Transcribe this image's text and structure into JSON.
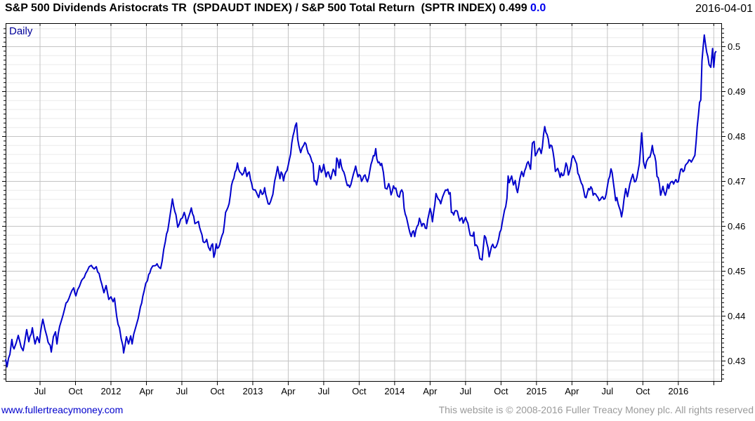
{
  "header": {
    "title": "S&P 500 Dividends Aristocrats TR  (SPDAUDT INDEX) / S&P 500 Total Return  (SPTR INDEX) 0.499 ",
    "change": "0.0",
    "date": "2016-04-01"
  },
  "chart": {
    "mode_label": "Daily"
  },
  "footer": {
    "link": "www.fullertreacymoney.com",
    "copyright": "This website is © 2008-2016 Fuller Treacy Money plc. All rights reserved"
  },
  "colors": {
    "line": "#0000cc",
    "grid_major": "#c4c4c4",
    "grid_minor": "#eaeaea",
    "border": "#000000",
    "tick": "#000000",
    "daily_label": "#000099",
    "change_text": "#0000ee",
    "link": "#0000cc",
    "copyright": "#9a9a9a"
  },
  "chart_data": {
    "type": "line",
    "title": "S&P 500 Dividends Aristocrats TR (SPDAUDT INDEX) / S&P 500 Total Return (SPTR INDEX)",
    "series_name": "SPDAUDT / SPTR ratio",
    "timeframe": "Daily",
    "last_value": 0.499,
    "change": 0.0,
    "legend": "none",
    "grid": "on",
    "x_axis": {
      "unit": "months_since_2011-04-01",
      "domain": [
        0.09,
        60.72
      ],
      "gridline_start": 3,
      "gridline_step": 3,
      "gridline_end": 60,
      "tick_labels": [
        {
          "label": "Jul",
          "t": 3
        },
        {
          "label": "Oct",
          "t": 6
        },
        {
          "label": "2012",
          "t": 9
        },
        {
          "label": "Apr",
          "t": 12
        },
        {
          "label": "Jul",
          "t": 15
        },
        {
          "label": "Oct",
          "t": 18
        },
        {
          "label": "2013",
          "t": 21
        },
        {
          "label": "Apr",
          "t": 24
        },
        {
          "label": "Jul",
          "t": 27
        },
        {
          "label": "Oct",
          "t": 30
        },
        {
          "label": "2014",
          "t": 33
        },
        {
          "label": "Apr",
          "t": 36
        },
        {
          "label": "Jul",
          "t": 39
        },
        {
          "label": "Oct",
          "t": 42
        },
        {
          "label": "2015",
          "t": 45
        },
        {
          "label": "Apr",
          "t": 48
        },
        {
          "label": "Jul",
          "t": 51
        },
        {
          "label": "Oct",
          "t": 54
        },
        {
          "label": "2016",
          "t": 57
        }
      ]
    },
    "y_axis": {
      "side": "right",
      "domain": [
        0.4254,
        0.5052
      ],
      "major_start": 0.43,
      "major_step": 0.01,
      "major_end": 0.5,
      "minor_step": 0.002,
      "tick_step": 0.001,
      "tick_labels": [
        {
          "label": "0.5",
          "v": 0.5
        },
        {
          "label": "0.49",
          "v": 0.49
        },
        {
          "label": "0.48",
          "v": 0.48
        },
        {
          "label": "0.47",
          "v": 0.47
        },
        {
          "label": "0.46",
          "v": 0.46
        },
        {
          "label": "0.45",
          "v": 0.45
        },
        {
          "label": "0.44",
          "v": 0.44
        },
        {
          "label": "0.43",
          "v": 0.43
        }
      ]
    },
    "points": [
      [
        0.09,
        0.4304
      ],
      [
        0.21,
        0.4287
      ],
      [
        0.45,
        0.4315
      ],
      [
        0.62,
        0.4348
      ],
      [
        0.8,
        0.4327
      ],
      [
        0.98,
        0.434
      ],
      [
        1.16,
        0.4357
      ],
      [
        1.4,
        0.4331
      ],
      [
        1.57,
        0.4323
      ],
      [
        1.87,
        0.437
      ],
      [
        2.05,
        0.4343
      ],
      [
        2.35,
        0.4374
      ],
      [
        2.58,
        0.4338
      ],
      [
        2.76,
        0.4354
      ],
      [
        2.94,
        0.4341
      ],
      [
        3.24,
        0.4393
      ],
      [
        3.42,
        0.437
      ],
      [
        3.59,
        0.4354
      ],
      [
        3.77,
        0.4338
      ],
      [
        3.95,
        0.432
      ],
      [
        4.13,
        0.4354
      ],
      [
        4.31,
        0.4365
      ],
      [
        4.43,
        0.4338
      ],
      [
        4.66,
        0.4377
      ],
      [
        4.84,
        0.4393
      ],
      [
        5.08,
        0.4416
      ],
      [
        5.32,
        0.4432
      ],
      [
        5.56,
        0.4448
      ],
      [
        5.85,
        0.4463
      ],
      [
        6.03,
        0.4445
      ],
      [
        6.33,
        0.4466
      ],
      [
        6.51,
        0.4479
      ],
      [
        6.74,
        0.4486
      ],
      [
        6.98,
        0.45
      ],
      [
        7.16,
        0.451
      ],
      [
        7.34,
        0.4513
      ],
      [
        7.58,
        0.4505
      ],
      [
        7.76,
        0.451
      ],
      [
        8.0,
        0.4495
      ],
      [
        8.23,
        0.4471
      ],
      [
        8.41,
        0.4452
      ],
      [
        8.59,
        0.4468
      ],
      [
        8.82,
        0.4437
      ],
      [
        9.0,
        0.4443
      ],
      [
        9.18,
        0.4432
      ],
      [
        9.3,
        0.444
      ],
      [
        9.48,
        0.4401
      ],
      [
        9.72,
        0.4374
      ],
      [
        10.01,
        0.4334
      ],
      [
        10.07,
        0.4318
      ],
      [
        10.31,
        0.4354
      ],
      [
        10.49,
        0.4338
      ],
      [
        10.67,
        0.4356
      ],
      [
        10.79,
        0.4338
      ],
      [
        11.2,
        0.4385
      ],
      [
        11.5,
        0.4421
      ],
      [
        11.8,
        0.4455
      ],
      [
        12.09,
        0.4479
      ],
      [
        12.39,
        0.4505
      ],
      [
        12.69,
        0.4512
      ],
      [
        13.0,
        0.4511
      ],
      [
        13.2,
        0.4506
      ],
      [
        13.6,
        0.4566
      ],
      [
        13.9,
        0.4606
      ],
      [
        14.2,
        0.4661
      ],
      [
        14.5,
        0.4626
      ],
      [
        14.65,
        0.4598
      ],
      [
        14.9,
        0.4616
      ],
      [
        15.2,
        0.4631
      ],
      [
        15.4,
        0.4606
      ],
      [
        15.7,
        0.4631
      ],
      [
        15.8,
        0.4641
      ],
      [
        16.1,
        0.4606
      ],
      [
        16.4,
        0.4611
      ],
      [
        16.7,
        0.4581
      ],
      [
        16.8,
        0.4566
      ],
      [
        17.1,
        0.4571
      ],
      [
        17.4,
        0.4546
      ],
      [
        17.6,
        0.4561
      ],
      [
        17.7,
        0.4531
      ],
      [
        17.9,
        0.4561
      ],
      [
        18.0,
        0.4551
      ],
      [
        18.3,
        0.4571
      ],
      [
        18.5,
        0.4586
      ],
      [
        18.7,
        0.4631
      ],
      [
        19.0,
        0.4651
      ],
      [
        19.2,
        0.4691
      ],
      [
        19.5,
        0.4721
      ],
      [
        19.7,
        0.4741
      ],
      [
        19.9,
        0.4721
      ],
      [
        20.1,
        0.4714
      ],
      [
        20.35,
        0.4731
      ],
      [
        20.5,
        0.4711
      ],
      [
        20.7,
        0.4721
      ],
      [
        20.9,
        0.4696
      ],
      [
        21.1,
        0.4681
      ],
      [
        21.3,
        0.4676
      ],
      [
        21.5,
        0.4664
      ],
      [
        21.65,
        0.4681
      ],
      [
        21.8,
        0.4671
      ],
      [
        22.0,
        0.4686
      ],
      [
        22.2,
        0.4661
      ],
      [
        22.4,
        0.4649
      ],
      [
        22.7,
        0.4671
      ],
      [
        22.85,
        0.4701
      ],
      [
        23.1,
        0.4733
      ],
      [
        23.3,
        0.4706
      ],
      [
        23.4,
        0.4721
      ],
      [
        23.6,
        0.4701
      ],
      [
        23.8,
        0.4721
      ],
      [
        24.0,
        0.4736
      ],
      [
        24.2,
        0.4761
      ],
      [
        24.3,
        0.4786
      ],
      [
        24.5,
        0.4811
      ],
      [
        24.7,
        0.483
      ],
      [
        24.8,
        0.4794
      ],
      [
        24.9,
        0.4779
      ],
      [
        25.05,
        0.4764
      ],
      [
        25.3,
        0.478
      ],
      [
        25.5,
        0.4783
      ],
      [
        25.8,
        0.476
      ],
      [
        26.1,
        0.474
      ],
      [
        26.2,
        0.47
      ],
      [
        26.4,
        0.4692
      ],
      [
        26.65,
        0.4735
      ],
      [
        26.8,
        0.472
      ],
      [
        27.0,
        0.4738
      ],
      [
        27.2,
        0.471
      ],
      [
        27.4,
        0.4721
      ],
      [
        27.6,
        0.4705
      ],
      [
        27.8,
        0.4727
      ],
      [
        28.0,
        0.4713
      ],
      [
        28.1,
        0.4752
      ],
      [
        28.3,
        0.473
      ],
      [
        28.4,
        0.4749
      ],
      [
        28.6,
        0.4725
      ],
      [
        28.7,
        0.4721
      ],
      [
        28.9,
        0.47
      ],
      [
        29.1,
        0.4692
      ],
      [
        29.3,
        0.4693
      ],
      [
        29.5,
        0.4715
      ],
      [
        29.7,
        0.4734
      ],
      [
        29.9,
        0.471
      ],
      [
        30.0,
        0.4715
      ],
      [
        30.2,
        0.47
      ],
      [
        30.4,
        0.4712
      ],
      [
        30.6,
        0.4705
      ],
      [
        30.7,
        0.4699
      ],
      [
        30.9,
        0.4723
      ],
      [
        31.1,
        0.4746
      ],
      [
        31.3,
        0.4757
      ],
      [
        31.4,
        0.4773
      ],
      [
        31.5,
        0.475
      ],
      [
        31.7,
        0.4743
      ],
      [
        31.9,
        0.474
      ],
      [
        32.05,
        0.472
      ],
      [
        32.2,
        0.4685
      ],
      [
        32.35,
        0.4683
      ],
      [
        32.5,
        0.4695
      ],
      [
        32.7,
        0.467
      ],
      [
        32.9,
        0.469
      ],
      [
        33.1,
        0.4685
      ],
      [
        33.25,
        0.4668
      ],
      [
        33.4,
        0.4665
      ],
      [
        33.5,
        0.4677
      ],
      [
        33.7,
        0.4675
      ],
      [
        33.8,
        0.464
      ],
      [
        34.0,
        0.462
      ],
      [
        34.1,
        0.4608
      ],
      [
        34.3,
        0.4585
      ],
      [
        34.4,
        0.4577
      ],
      [
        34.6,
        0.459
      ],
      [
        34.7,
        0.4577
      ],
      [
        34.9,
        0.46
      ],
      [
        35.1,
        0.4618
      ],
      [
        35.3,
        0.46
      ],
      [
        35.5,
        0.4605
      ],
      [
        35.7,
        0.4595
      ],
      [
        35.9,
        0.4627
      ],
      [
        36.0,
        0.464
      ],
      [
        36.2,
        0.461
      ],
      [
        36.3,
        0.4631
      ],
      [
        36.5,
        0.4673
      ],
      [
        36.7,
        0.466
      ],
      [
        36.9,
        0.465
      ],
      [
        37.05,
        0.4665
      ],
      [
        37.2,
        0.4675
      ],
      [
        37.4,
        0.468
      ],
      [
        37.7,
        0.4675
      ],
      [
        37.8,
        0.4631
      ],
      [
        38.0,
        0.4625
      ],
      [
        38.2,
        0.4635
      ],
      [
        38.4,
        0.4622
      ],
      [
        38.5,
        0.4612
      ],
      [
        38.7,
        0.4619
      ],
      [
        38.8,
        0.4607
      ],
      [
        39.0,
        0.462
      ],
      [
        39.1,
        0.4612
      ],
      [
        39.3,
        0.4592
      ],
      [
        39.5,
        0.4579
      ],
      [
        39.7,
        0.4587
      ],
      [
        39.8,
        0.4557
      ],
      [
        40.0,
        0.4555
      ],
      [
        40.1,
        0.4545
      ],
      [
        40.2,
        0.4528
      ],
      [
        40.4,
        0.4525
      ],
      [
        40.5,
        0.4552
      ],
      [
        40.6,
        0.4579
      ],
      [
        40.8,
        0.4562
      ],
      [
        41.0,
        0.4532
      ],
      [
        41.2,
        0.4555
      ],
      [
        41.3,
        0.456
      ],
      [
        41.5,
        0.4552
      ],
      [
        41.7,
        0.4562
      ],
      [
        41.8,
        0.4572
      ],
      [
        42.0,
        0.4592
      ],
      [
        42.1,
        0.4607
      ],
      [
        42.3,
        0.4636
      ],
      [
        42.5,
        0.4662
      ],
      [
        42.6,
        0.4712
      ],
      [
        42.7,
        0.4697
      ],
      [
        42.9,
        0.4712
      ],
      [
        43.05,
        0.4692
      ],
      [
        43.2,
        0.4702
      ],
      [
        43.4,
        0.4675
      ],
      [
        43.6,
        0.4707
      ],
      [
        43.75,
        0.4722
      ],
      [
        43.9,
        0.4711
      ],
      [
        44.1,
        0.473
      ],
      [
        44.3,
        0.4744
      ],
      [
        44.5,
        0.4727
      ],
      [
        44.65,
        0.4785
      ],
      [
        44.8,
        0.4789
      ],
      [
        44.9,
        0.4757
      ],
      [
        45.05,
        0.4764
      ],
      [
        45.25,
        0.4774
      ],
      [
        45.4,
        0.4762
      ],
      [
        45.6,
        0.4804
      ],
      [
        45.7,
        0.4822
      ],
      [
        45.8,
        0.4809
      ],
      [
        46.0,
        0.4794
      ],
      [
        46.1,
        0.4774
      ],
      [
        46.3,
        0.4779
      ],
      [
        46.4,
        0.4766
      ],
      [
        46.6,
        0.4722
      ],
      [
        46.8,
        0.4729
      ],
      [
        47.0,
        0.4709
      ],
      [
        47.1,
        0.4719
      ],
      [
        47.3,
        0.4714
      ],
      [
        47.5,
        0.4741
      ],
      [
        47.7,
        0.4714
      ],
      [
        47.9,
        0.4734
      ],
      [
        48.0,
        0.4751
      ],
      [
        48.2,
        0.4752
      ],
      [
        48.4,
        0.4739
      ],
      [
        48.5,
        0.4718
      ],
      [
        48.7,
        0.4704
      ],
      [
        48.8,
        0.4696
      ],
      [
        49.0,
        0.4679
      ],
      [
        49.1,
        0.4665
      ],
      [
        49.3,
        0.4674
      ],
      [
        49.4,
        0.4684
      ],
      [
        49.6,
        0.4688
      ],
      [
        49.8,
        0.4669
      ],
      [
        50.0,
        0.4672
      ],
      [
        50.2,
        0.4664
      ],
      [
        50.4,
        0.4659
      ],
      [
        50.6,
        0.4666
      ],
      [
        50.8,
        0.4662
      ],
      [
        50.9,
        0.4672
      ],
      [
        51.1,
        0.4704
      ],
      [
        51.3,
        0.4728
      ],
      [
        51.5,
        0.4699
      ],
      [
        51.7,
        0.4657
      ],
      [
        51.8,
        0.4664
      ],
      [
        52.0,
        0.4642
      ],
      [
        52.2,
        0.4621
      ],
      [
        52.4,
        0.4659
      ],
      [
        52.55,
        0.4684
      ],
      [
        52.7,
        0.4666
      ],
      [
        52.9,
        0.4694
      ],
      [
        53.15,
        0.4716
      ],
      [
        53.3,
        0.4699
      ],
      [
        53.5,
        0.4709
      ],
      [
        53.7,
        0.4739
      ],
      [
        53.9,
        0.4808
      ],
      [
        54.0,
        0.4772
      ],
      [
        54.05,
        0.4744
      ],
      [
        54.2,
        0.4729
      ],
      [
        54.4,
        0.4749
      ],
      [
        54.6,
        0.4754
      ],
      [
        54.8,
        0.478
      ],
      [
        54.9,
        0.4762
      ],
      [
        55.1,
        0.4744
      ],
      [
        55.2,
        0.4711
      ],
      [
        55.4,
        0.4694
      ],
      [
        55.5,
        0.4669
      ],
      [
        55.7,
        0.4689
      ],
      [
        55.9,
        0.4669
      ],
      [
        56.1,
        0.4694
      ],
      [
        56.2,
        0.4684
      ],
      [
        56.4,
        0.4699
      ],
      [
        56.6,
        0.4694
      ],
      [
        56.8,
        0.4704
      ],
      [
        57.0,
        0.4699
      ],
      [
        57.1,
        0.4714
      ],
      [
        57.3,
        0.4728
      ],
      [
        57.5,
        0.4724
      ],
      [
        57.7,
        0.4739
      ],
      [
        57.9,
        0.4748
      ],
      [
        58.1,
        0.4743
      ],
      [
        58.3,
        0.4753
      ],
      [
        58.4,
        0.4758
      ],
      [
        58.6,
        0.4822
      ],
      [
        58.7,
        0.4847
      ],
      [
        58.8,
        0.4876
      ],
      [
        58.9,
        0.4881
      ],
      [
        59.0,
        0.4968
      ],
      [
        59.2,
        0.5026
      ],
      [
        59.3,
        0.5006
      ],
      [
        59.4,
        0.4988
      ],
      [
        59.5,
        0.4978
      ],
      [
        59.6,
        0.496
      ],
      [
        59.75,
        0.4954
      ],
      [
        59.9,
        0.4996
      ],
      [
        60.0,
        0.4954
      ],
      [
        60.1,
        0.4986
      ],
      [
        60.2,
        0.499
      ]
    ]
  }
}
